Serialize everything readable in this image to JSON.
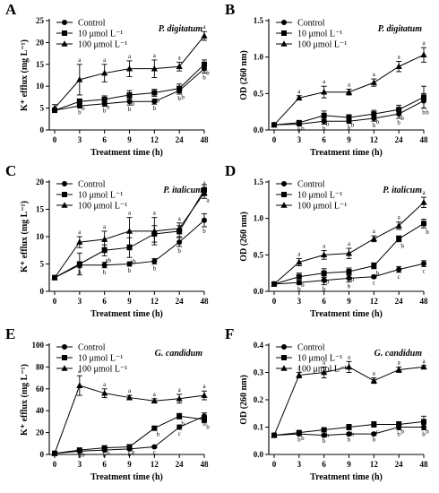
{
  "chart_data": [
    {
      "type": "line",
      "panel": "A",
      "species": "P. digitatum",
      "xlabel": "Treatment time (h)",
      "ylabel": "K⁺ efflux (mg L⁻¹)",
      "categories": [
        "0",
        "3",
        "6",
        "9",
        "12",
        "24",
        "48"
      ],
      "ylim": [
        0,
        25
      ],
      "yticks": [
        "0",
        "5",
        "10",
        "15",
        "20",
        "25"
      ],
      "series": [
        {
          "name": "Control",
          "marker": "circle",
          "values": [
            4.5,
            5.5,
            6,
            6.5,
            6.5,
            9,
            14
          ],
          "errors": [
            0.5,
            0.5,
            0.6,
            0.8,
            0.6,
            0.8,
            1.0
          ],
          "labels": [
            "",
            "b",
            "b",
            "b",
            "b",
            "b",
            "b"
          ]
        },
        {
          "name": "10 μmol L⁻¹",
          "marker": "square",
          "values": [
            4.5,
            6.5,
            7,
            8,
            8.5,
            9.5,
            15
          ],
          "errors": [
            0.5,
            0.6,
            0.8,
            1.0,
            0.8,
            1.0,
            1.0
          ],
          "labels": [
            "",
            "b",
            "b",
            "b",
            "b",
            "b",
            "b"
          ]
        },
        {
          "name": "100 μmol L⁻¹",
          "marker": "triangle",
          "values": [
            5,
            11.5,
            13,
            14,
            14,
            14.5,
            21.5
          ],
          "errors": [
            0.8,
            3.5,
            2.0,
            1.8,
            2.0,
            1.0,
            1.0
          ],
          "labels": [
            "",
            "a",
            "a",
            "a",
            "a",
            "a",
            "a"
          ]
        }
      ]
    },
    {
      "type": "line",
      "panel": "B",
      "species": "P. digitatum",
      "xlabel": "Treatment time (h)",
      "ylabel": "OD (260 nm)",
      "categories": [
        "0",
        "3",
        "6",
        "9",
        "12",
        "24",
        "48"
      ],
      "ylim": [
        0,
        1.5
      ],
      "yticks": [
        "0.0",
        "0.5",
        "1.0",
        "1.5"
      ],
      "series": [
        {
          "name": "Control",
          "marker": "circle",
          "values": [
            0.07,
            0.08,
            0.12,
            0.12,
            0.16,
            0.22,
            0.4
          ],
          "errors": [
            0.01,
            0.02,
            0.04,
            0.03,
            0.04,
            0.06,
            0.1
          ],
          "labels": [
            "",
            "b",
            "b",
            "b",
            "b",
            "b",
            "b"
          ]
        },
        {
          "name": "10 μmol L⁻¹",
          "marker": "square",
          "values": [
            0.07,
            0.1,
            0.2,
            0.17,
            0.22,
            0.28,
            0.45
          ],
          "errors": [
            0.01,
            0.02,
            0.06,
            0.04,
            0.05,
            0.06,
            0.15
          ],
          "labels": [
            "",
            "b",
            "b",
            "b",
            "b",
            "b",
            "b"
          ]
        },
        {
          "name": "100 μmol L⁻¹",
          "marker": "triangle",
          "values": [
            0.07,
            0.44,
            0.52,
            0.52,
            0.65,
            0.87,
            1.03
          ],
          "errors": [
            0.01,
            0.03,
            0.08,
            0.04,
            0.05,
            0.07,
            0.1
          ],
          "labels": [
            "",
            "a",
            "a",
            "a",
            "a",
            "a",
            "a"
          ]
        }
      ]
    },
    {
      "type": "line",
      "panel": "C",
      "species": "P. italicum",
      "xlabel": "Treatment time (h)",
      "ylabel": "K⁺ efflux (mg L⁻¹)",
      "categories": [
        "0",
        "3",
        "6",
        "9",
        "12",
        "24",
        "48"
      ],
      "ylim": [
        0,
        20
      ],
      "yticks": [
        "0",
        "5",
        "10",
        "15",
        "20"
      ],
      "series": [
        {
          "name": "Control",
          "marker": "circle",
          "values": [
            2.5,
            4.8,
            4.8,
            5,
            5.5,
            9,
            13
          ],
          "errors": [
            0.3,
            0.5,
            0.5,
            0.4,
            0.5,
            0.8,
            1.2
          ],
          "labels": [
            "",
            "b",
            "b",
            "b",
            "b",
            "b",
            "b"
          ]
        },
        {
          "name": "10 μmol L⁻¹",
          "marker": "square",
          "values": [
            2.5,
            5,
            7.5,
            8,
            10.5,
            11,
            18.5
          ],
          "errors": [
            0.3,
            2.0,
            1.0,
            1.8,
            1.5,
            1.0,
            1.0
          ],
          "labels": [
            "",
            "",
            "ab",
            "ab",
            "",
            "",
            "a"
          ]
        },
        {
          "name": "100 μmol L⁻¹",
          "marker": "triangle",
          "values": [
            2.5,
            9,
            9.5,
            11,
            11,
            11.5,
            18
          ],
          "errors": [
            0.3,
            1.0,
            1.5,
            2.5,
            2.5,
            1.0,
            1.0
          ],
          "labels": [
            "",
            "a",
            "a",
            "a",
            "a",
            "a",
            "a"
          ]
        }
      ]
    },
    {
      "type": "line",
      "panel": "D",
      "species": "P. italicum",
      "xlabel": "Treatment time (h)",
      "ylabel": "OD (260 nm)",
      "categories": [
        "0",
        "3",
        "6",
        "9",
        "12",
        "24",
        "48"
      ],
      "ylim": [
        0,
        1.5
      ],
      "yticks": [
        "0.0",
        "0.5",
        "1.0",
        "1.5"
      ],
      "series": [
        {
          "name": "Control",
          "marker": "circle",
          "values": [
            0.1,
            0.12,
            0.15,
            0.18,
            0.2,
            0.3,
            0.38
          ],
          "errors": [
            0.02,
            0.03,
            0.06,
            0.05,
            0.02,
            0.04,
            0.04
          ],
          "labels": [
            "",
            "b",
            "b",
            "b",
            "c",
            "c",
            "c"
          ]
        },
        {
          "name": "10 μmol L⁻¹",
          "marker": "square",
          "values": [
            0.1,
            0.2,
            0.25,
            0.27,
            0.35,
            0.72,
            0.93
          ],
          "errors": [
            0.02,
            0.05,
            0.06,
            0.05,
            0.04,
            0.04,
            0.06
          ],
          "labels": [
            "",
            "b",
            "b",
            "b",
            "b",
            "b",
            "b"
          ]
        },
        {
          "name": "100 μmol L⁻¹",
          "marker": "triangle",
          "values": [
            0.1,
            0.4,
            0.5,
            0.52,
            0.72,
            0.9,
            1.22
          ],
          "errors": [
            0.02,
            0.05,
            0.06,
            0.07,
            0.04,
            0.05,
            0.07
          ],
          "labels": [
            "",
            "a",
            "a",
            "a",
            "a",
            "a",
            "a"
          ]
        }
      ]
    },
    {
      "type": "line",
      "panel": "E",
      "species": "G. candidum",
      "xlabel": "Treatment time (h)",
      "ylabel": "K⁺ efflux (mg L⁻¹)",
      "categories": [
        "0",
        "3",
        "6",
        "9",
        "12",
        "24",
        "48"
      ],
      "ylim": [
        0,
        100
      ],
      "yticks": [
        "0",
        "20",
        "40",
        "60",
        "80",
        "100"
      ],
      "series": [
        {
          "name": "Control",
          "marker": "circle",
          "values": [
            1,
            3,
            4,
            5,
            7,
            25,
            35
          ],
          "errors": [
            0.5,
            0.5,
            0.8,
            0.8,
            1.0,
            2.0,
            3.0
          ],
          "labels": [
            "",
            "b",
            "b",
            "b",
            "c",
            "c",
            "b"
          ]
        },
        {
          "name": "10 μmol L⁻¹",
          "marker": "square",
          "values": [
            1,
            4,
            6,
            7,
            24,
            35,
            32
          ],
          "errors": [
            0.5,
            0.5,
            0.8,
            0.8,
            1.5,
            2.5,
            3.0
          ],
          "labels": [
            "",
            "b",
            "b",
            "b",
            "b",
            "b",
            "b"
          ]
        },
        {
          "name": "100 μmol L⁻¹",
          "marker": "triangle",
          "values": [
            1,
            63,
            56,
            52,
            49,
            51,
            54
          ],
          "errors": [
            0.5,
            9.0,
            4.0,
            2.0,
            2.0,
            4.0,
            4.0
          ],
          "labels": [
            "",
            "a",
            "a",
            "a",
            "a",
            "a",
            "a"
          ]
        }
      ]
    },
    {
      "type": "line",
      "panel": "F",
      "species": "G. candidum",
      "xlabel": "Treatment time (h)",
      "ylabel": "OD (260 nm)",
      "categories": [
        "0",
        "3",
        "6",
        "9",
        "12",
        "24",
        "48"
      ],
      "ylim": [
        0,
        0.4
      ],
      "yticks": [
        "0.0",
        "0.1",
        "0.2",
        "0.3",
        "0.4"
      ],
      "series": [
        {
          "name": "Control",
          "marker": "circle",
          "values": [
            0.07,
            0.075,
            0.07,
            0.075,
            0.075,
            0.1,
            0.1
          ],
          "errors": [
            0.005,
            0.005,
            0.005,
            0.005,
            0.005,
            0.01,
            0.01
          ],
          "labels": [
            "",
            "b",
            "b",
            "b",
            "b",
            "b",
            "b"
          ]
        },
        {
          "name": "10 μmol L⁻¹",
          "marker": "square",
          "values": [
            0.07,
            0.08,
            0.09,
            0.1,
            0.11,
            0.11,
            0.12
          ],
          "errors": [
            0.005,
            0.005,
            0.005,
            0.01,
            0.01,
            0.01,
            0.02
          ],
          "labels": [
            "",
            "b",
            "b",
            "b",
            "c",
            "b",
            "b"
          ]
        },
        {
          "name": "100 μmol L⁻¹",
          "marker": "triangle",
          "values": [
            0.07,
            0.29,
            0.3,
            0.32,
            0.27,
            0.31,
            0.32
          ],
          "errors": [
            0.005,
            0.01,
            0.02,
            0.02,
            0.01,
            0.01,
            0.005
          ],
          "labels": [
            "",
            "a",
            "a",
            "a",
            "a",
            "a",
            "a"
          ]
        }
      ]
    }
  ]
}
